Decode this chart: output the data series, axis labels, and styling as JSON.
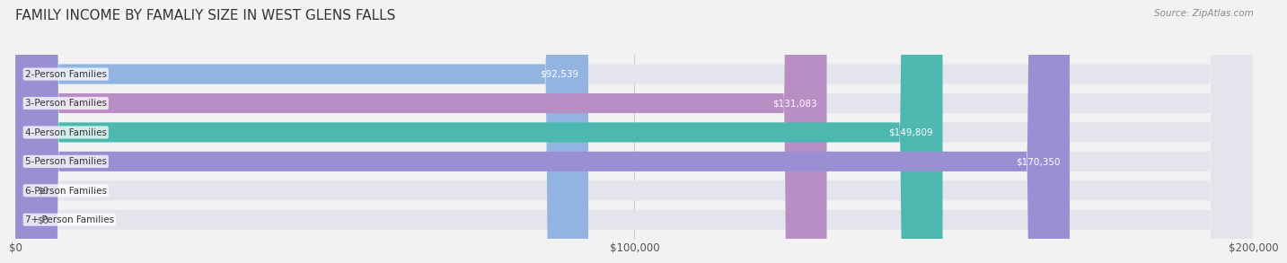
{
  "title": "FAMILY INCOME BY FAMALIY SIZE IN WEST GLENS FALLS",
  "source": "Source: ZipAtlas.com",
  "categories": [
    "2-Person Families",
    "3-Person Families",
    "4-Person Families",
    "5-Person Families",
    "6-Person Families",
    "7+ Person Families"
  ],
  "values": [
    92539,
    131083,
    149809,
    170350,
    0,
    0
  ],
  "bar_colors": [
    "#92b4e0",
    "#b98ec4",
    "#4db8b0",
    "#9b8fd4",
    "#f4a0b0",
    "#f5c89a"
  ],
  "xlim": [
    0,
    200000
  ],
  "xticks": [
    0,
    100000,
    200000
  ],
  "xtick_labels": [
    "$0",
    "$100,000",
    "$200,000"
  ],
  "background_color": "#f2f2f2",
  "bar_bg_color": "#e4e4ec",
  "title_fontsize": 11,
  "tick_fontsize": 8.5,
  "label_fontsize": 7.5,
  "value_fontsize": 7.5,
  "source_fontsize": 7.5
}
